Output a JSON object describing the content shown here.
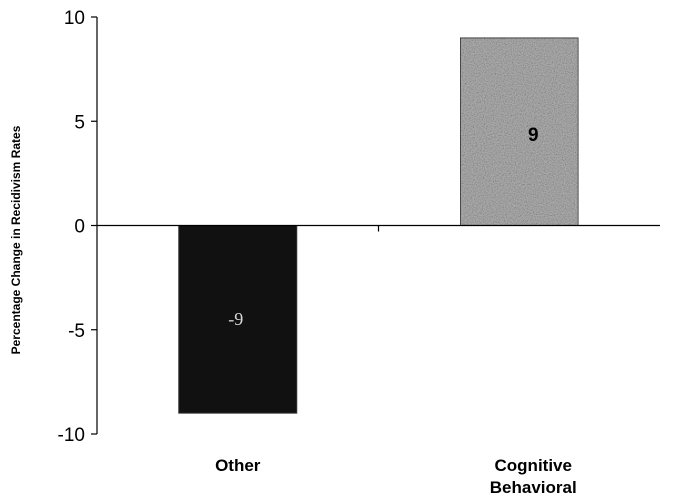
{
  "chart_data": {
    "type": "bar",
    "categories": [
      "Other",
      "Cognitive Behavioral"
    ],
    "category_lines": [
      [
        "Other"
      ],
      [
        "Cognitive",
        "Behavioral"
      ]
    ],
    "values": [
      -9,
      9
    ],
    "data_labels": [
      "-9",
      "9"
    ],
    "bar_colors": [
      "#111111",
      "#b4b4b4"
    ],
    "ylabel": "Percentage Change in Recidivism Rates",
    "xlabel": "",
    "title": "",
    "ylim": [
      -10,
      10
    ],
    "yticks": [
      10,
      5,
      0,
      -5,
      -10
    ],
    "ytick_labels": [
      "10",
      "5",
      "0",
      "-5",
      "-10"
    ],
    "grid": false,
    "legend": "none"
  }
}
